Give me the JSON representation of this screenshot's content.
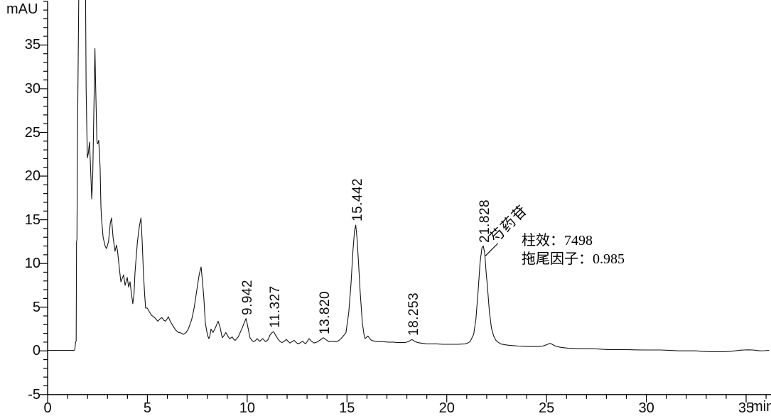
{
  "labels": {
    "y_unit": "mAU",
    "x_unit": "min"
  },
  "annotations": {
    "compound": "芍药苷",
    "column_efficiency": "柱效：7498",
    "tailing_factor": "拖尾因子：0.985"
  },
  "chart_data": {
    "type": "line",
    "title": "",
    "xlabel": "min",
    "ylabel": "mAU",
    "xlim": [
      0,
      36.2
    ],
    "ylim": [
      -5,
      40.2
    ],
    "grid": false,
    "x_major_ticks": [
      0,
      5,
      10,
      15,
      20,
      25,
      30,
      35
    ],
    "x_minor_step": 1,
    "x_minor_max": 36,
    "y_major_ticks": [
      -5,
      0,
      5,
      10,
      15,
      20,
      25,
      30,
      35
    ],
    "y_minor_step": 1,
    "y_minor_max": 40,
    "peaks": [
      {
        "label": "9.942",
        "t": 9.942,
        "height": 3.7
      },
      {
        "label": "11.327",
        "t": 11.327,
        "height": 2.2
      },
      {
        "label": "13.820",
        "t": 13.82,
        "height": 1.5
      },
      {
        "label": "15.442",
        "t": 15.442,
        "height": 14.4
      },
      {
        "label": "18.253",
        "t": 18.253,
        "height": 1.3
      },
      {
        "label": "21.828",
        "t": 21.828,
        "height": 12.0
      }
    ],
    "compound_leader": {
      "from_t": 21.93,
      "from_v": 10.85,
      "to_t": 22.56,
      "to_v": 12.3
    },
    "trace": [
      [
        0,
        0.05
      ],
      [
        0.5,
        0.05
      ],
      [
        1.0,
        0.05
      ],
      [
        1.3,
        0.05
      ],
      [
        1.36,
        0.1
      ],
      [
        1.4,
        1.0
      ],
      [
        1.43,
        1.1
      ],
      [
        1.45,
        12.5
      ],
      [
        1.47,
        12.7
      ],
      [
        1.5,
        25
      ],
      [
        1.56,
        40.2
      ],
      [
        1.62,
        40.8
      ],
      [
        1.9,
        40.8
      ],
      [
        1.93,
        30
      ],
      [
        1.99,
        22.1
      ],
      [
        2.04,
        22.6
      ],
      [
        2.1,
        23.9
      ],
      [
        2.15,
        21.0
      ],
      [
        2.21,
        17.4
      ],
      [
        2.26,
        20.0
      ],
      [
        2.32,
        28.0
      ],
      [
        2.37,
        34.6
      ],
      [
        2.41,
        30.0
      ],
      [
        2.47,
        24.0
      ],
      [
        2.5,
        23.7
      ],
      [
        2.53,
        23.8
      ],
      [
        2.56,
        24.1
      ],
      [
        2.6,
        22.5
      ],
      [
        2.63,
        20.9
      ],
      [
        2.67,
        16.6
      ],
      [
        2.7,
        15.2
      ],
      [
        2.78,
        13.0
      ],
      [
        2.88,
        12.0
      ],
      [
        2.95,
        11.7
      ],
      [
        3.05,
        12.5
      ],
      [
        3.14,
        14.6
      ],
      [
        3.2,
        15.2
      ],
      [
        3.28,
        13.0
      ],
      [
        3.38,
        11.4
      ],
      [
        3.45,
        12.1
      ],
      [
        3.5,
        11.5
      ],
      [
        3.56,
        10.2
      ],
      [
        3.62,
        8.9
      ],
      [
        3.67,
        7.9
      ],
      [
        3.74,
        8.3
      ],
      [
        3.81,
        8.7
      ],
      [
        3.88,
        7.5
      ],
      [
        3.94,
        8.0
      ],
      [
        3.99,
        8.4
      ],
      [
        4.06,
        7.3
      ],
      [
        4.13,
        7.9
      ],
      [
        4.2,
        6.5
      ],
      [
        4.27,
        5.4
      ],
      [
        4.33,
        6.5
      ],
      [
        4.38,
        9.0
      ],
      [
        4.5,
        12.5
      ],
      [
        4.6,
        14.3
      ],
      [
        4.68,
        15.2
      ],
      [
        4.74,
        12.5
      ],
      [
        4.8,
        9.0
      ],
      [
        4.86,
        6.5
      ],
      [
        4.91,
        4.9
      ],
      [
        4.99,
        4.9
      ],
      [
        5.04,
        4.7
      ],
      [
        5.09,
        4.5
      ],
      [
        5.2,
        4.1
      ],
      [
        5.3,
        3.9
      ],
      [
        5.37,
        3.8
      ],
      [
        5.52,
        3.4
      ],
      [
        5.65,
        3.7
      ],
      [
        5.73,
        3.8
      ],
      [
        5.83,
        3.5
      ],
      [
        5.91,
        3.4
      ],
      [
        6.0,
        3.7
      ],
      [
        6.05,
        3.9
      ],
      [
        6.16,
        3.3
      ],
      [
        6.3,
        2.8
      ],
      [
        6.41,
        2.4
      ],
      [
        6.55,
        2.1
      ],
      [
        6.62,
        2.1
      ],
      [
        6.72,
        2.0
      ],
      [
        6.8,
        1.9
      ],
      [
        6.88,
        2.0
      ],
      [
        6.94,
        2.1
      ],
      [
        7.05,
        2.5
      ],
      [
        7.22,
        3.6
      ],
      [
        7.35,
        5.0
      ],
      [
        7.5,
        7.3
      ],
      [
        7.6,
        8.8
      ],
      [
        7.69,
        9.6
      ],
      [
        7.76,
        8.0
      ],
      [
        7.83,
        6.0
      ],
      [
        7.9,
        3.2
      ],
      [
        8.01,
        1.8
      ],
      [
        8.08,
        1.4
      ],
      [
        8.13,
        1.7
      ],
      [
        8.19,
        2.5
      ],
      [
        8.29,
        2.1
      ],
      [
        8.4,
        2.6
      ],
      [
        8.54,
        3.4
      ],
      [
        8.63,
        2.8
      ],
      [
        8.75,
        1.5
      ],
      [
        8.85,
        1.8
      ],
      [
        8.93,
        2.1
      ],
      [
        9.03,
        1.7
      ],
      [
        9.11,
        1.4
      ],
      [
        9.2,
        1.5
      ],
      [
        9.25,
        1.6
      ],
      [
        9.33,
        1.3
      ],
      [
        9.4,
        1.2
      ],
      [
        9.55,
        1.6
      ],
      [
        9.71,
        2.4
      ],
      [
        9.85,
        3.2
      ],
      [
        9.94,
        3.7
      ],
      [
        10.02,
        2.9
      ],
      [
        10.14,
        1.5
      ],
      [
        10.24,
        1.2
      ],
      [
        10.32,
        1.05
      ],
      [
        10.42,
        1.2
      ],
      [
        10.5,
        1.4
      ],
      [
        10.58,
        1.2
      ],
      [
        10.64,
        1.1
      ],
      [
        10.72,
        1.3
      ],
      [
        10.78,
        1.4
      ],
      [
        10.86,
        1.2
      ],
      [
        10.93,
        1.05
      ],
      [
        11.05,
        1.3
      ],
      [
        11.14,
        1.8
      ],
      [
        11.25,
        2.1
      ],
      [
        11.33,
        2.2
      ],
      [
        11.42,
        1.8
      ],
      [
        11.53,
        1.4
      ],
      [
        11.64,
        1.1
      ],
      [
        11.74,
        0.95
      ],
      [
        11.86,
        1.1
      ],
      [
        11.96,
        1.3
      ],
      [
        12.05,
        1.1
      ],
      [
        12.14,
        0.9
      ],
      [
        12.25,
        1.05
      ],
      [
        12.35,
        1.2
      ],
      [
        12.46,
        0.95
      ],
      [
        12.56,
        0.8
      ],
      [
        12.68,
        0.95
      ],
      [
        12.78,
        1.1
      ],
      [
        12.85,
        0.95
      ],
      [
        12.92,
        0.8
      ],
      [
        13.02,
        1.1
      ],
      [
        13.1,
        1.4
      ],
      [
        13.22,
        1.1
      ],
      [
        13.35,
        0.9
      ],
      [
        13.5,
        1.0
      ],
      [
        13.63,
        1.2
      ],
      [
        13.75,
        1.4
      ],
      [
        13.82,
        1.5
      ],
      [
        13.97,
        1.25
      ],
      [
        14.09,
        1.05
      ],
      [
        14.2,
        1.1
      ],
      [
        14.27,
        1.1
      ],
      [
        14.38,
        1.05
      ],
      [
        14.48,
        1.05
      ],
      [
        14.6,
        1.2
      ],
      [
        14.7,
        1.4
      ],
      [
        14.85,
        1.8
      ],
      [
        14.95,
        2.1
      ],
      [
        15.09,
        4.4
      ],
      [
        15.2,
        7.6
      ],
      [
        15.3,
        11.5
      ],
      [
        15.38,
        13.8
      ],
      [
        15.44,
        14.4
      ],
      [
        15.5,
        13.0
      ],
      [
        15.58,
        10.0
      ],
      [
        15.66,
        6.8
      ],
      [
        15.77,
        3.2
      ],
      [
        15.86,
        1.8
      ],
      [
        15.91,
        1.4
      ],
      [
        15.98,
        1.55
      ],
      [
        16.05,
        1.7
      ],
      [
        16.14,
        1.4
      ],
      [
        16.23,
        1.2
      ],
      [
        16.4,
        1.1
      ],
      [
        16.6,
        1.05
      ],
      [
        16.83,
        1.05
      ],
      [
        17.05,
        1.0
      ],
      [
        17.3,
        1.0
      ],
      [
        17.54,
        0.95
      ],
      [
        17.75,
        0.95
      ],
      [
        17.9,
        0.95
      ],
      [
        18.0,
        1.0
      ],
      [
        18.11,
        1.1
      ],
      [
        18.25,
        1.3
      ],
      [
        18.35,
        1.15
      ],
      [
        18.43,
        1.05
      ],
      [
        18.55,
        0.95
      ],
      [
        18.68,
        0.9
      ],
      [
        18.85,
        0.85
      ],
      [
        18.97,
        0.8
      ],
      [
        19.2,
        0.8
      ],
      [
        19.5,
        0.8
      ],
      [
        19.8,
        0.75
      ],
      [
        20.03,
        0.75
      ],
      [
        20.3,
        0.75
      ],
      [
        20.57,
        0.75
      ],
      [
        20.8,
        0.78
      ],
      [
        20.92,
        0.8
      ],
      [
        21.05,
        0.9
      ],
      [
        21.17,
        1.05
      ],
      [
        21.35,
        1.9
      ],
      [
        21.46,
        3.6
      ],
      [
        21.57,
        6.8
      ],
      [
        21.67,
        10.1
      ],
      [
        21.76,
        11.8
      ],
      [
        21.83,
        12.0
      ],
      [
        21.9,
        11.2
      ],
      [
        21.98,
        8.8
      ],
      [
        22.03,
        7.6
      ],
      [
        22.14,
        4.4
      ],
      [
        22.24,
        2.6
      ],
      [
        22.35,
        1.7
      ],
      [
        22.45,
        1.25
      ],
      [
        22.53,
        1.05
      ],
      [
        22.7,
        0.8
      ],
      [
        22.9,
        0.7
      ],
      [
        23.06,
        0.65
      ],
      [
        23.35,
        0.6
      ],
      [
        23.6,
        0.55
      ],
      [
        23.9,
        0.52
      ],
      [
        24.13,
        0.5
      ],
      [
        24.4,
        0.5
      ],
      [
        24.59,
        0.5
      ],
      [
        24.8,
        0.55
      ],
      [
        24.95,
        0.65
      ],
      [
        25.1,
        0.8
      ],
      [
        25.2,
        0.85
      ],
      [
        25.32,
        0.7
      ],
      [
        25.44,
        0.55
      ],
      [
        25.6,
        0.45
      ],
      [
        25.73,
        0.4
      ],
      [
        25.9,
        0.35
      ],
      [
        26.09,
        0.3
      ],
      [
        26.4,
        0.27
      ],
      [
        26.62,
        0.25
      ],
      [
        27.0,
        0.25
      ],
      [
        27.33,
        0.25
      ],
      [
        27.7,
        0.2
      ],
      [
        28.04,
        0.15
      ],
      [
        28.5,
        0.15
      ],
      [
        28.93,
        0.15
      ],
      [
        29.4,
        0.12
      ],
      [
        29.82,
        0.1
      ],
      [
        30.3,
        0.1
      ],
      [
        30.71,
        0.1
      ],
      [
        31.2,
        0.05
      ],
      [
        31.6,
        0.0
      ],
      [
        32.0,
        0.0
      ],
      [
        32.49,
        0.0
      ],
      [
        32.8,
        -0.05
      ],
      [
        33.2,
        -0.1
      ],
      [
        33.6,
        -0.1
      ],
      [
        33.91,
        -0.1
      ],
      [
        34.2,
        -0.05
      ],
      [
        34.45,
        0.0
      ],
      [
        34.7,
        0.08
      ],
      [
        34.91,
        0.1
      ],
      [
        35.1,
        0.12
      ],
      [
        35.34,
        0.1
      ],
      [
        35.5,
        0.05
      ],
      [
        35.69,
        0.0
      ],
      [
        35.9,
        0.02
      ],
      [
        36.15,
        0.05
      ]
    ]
  }
}
